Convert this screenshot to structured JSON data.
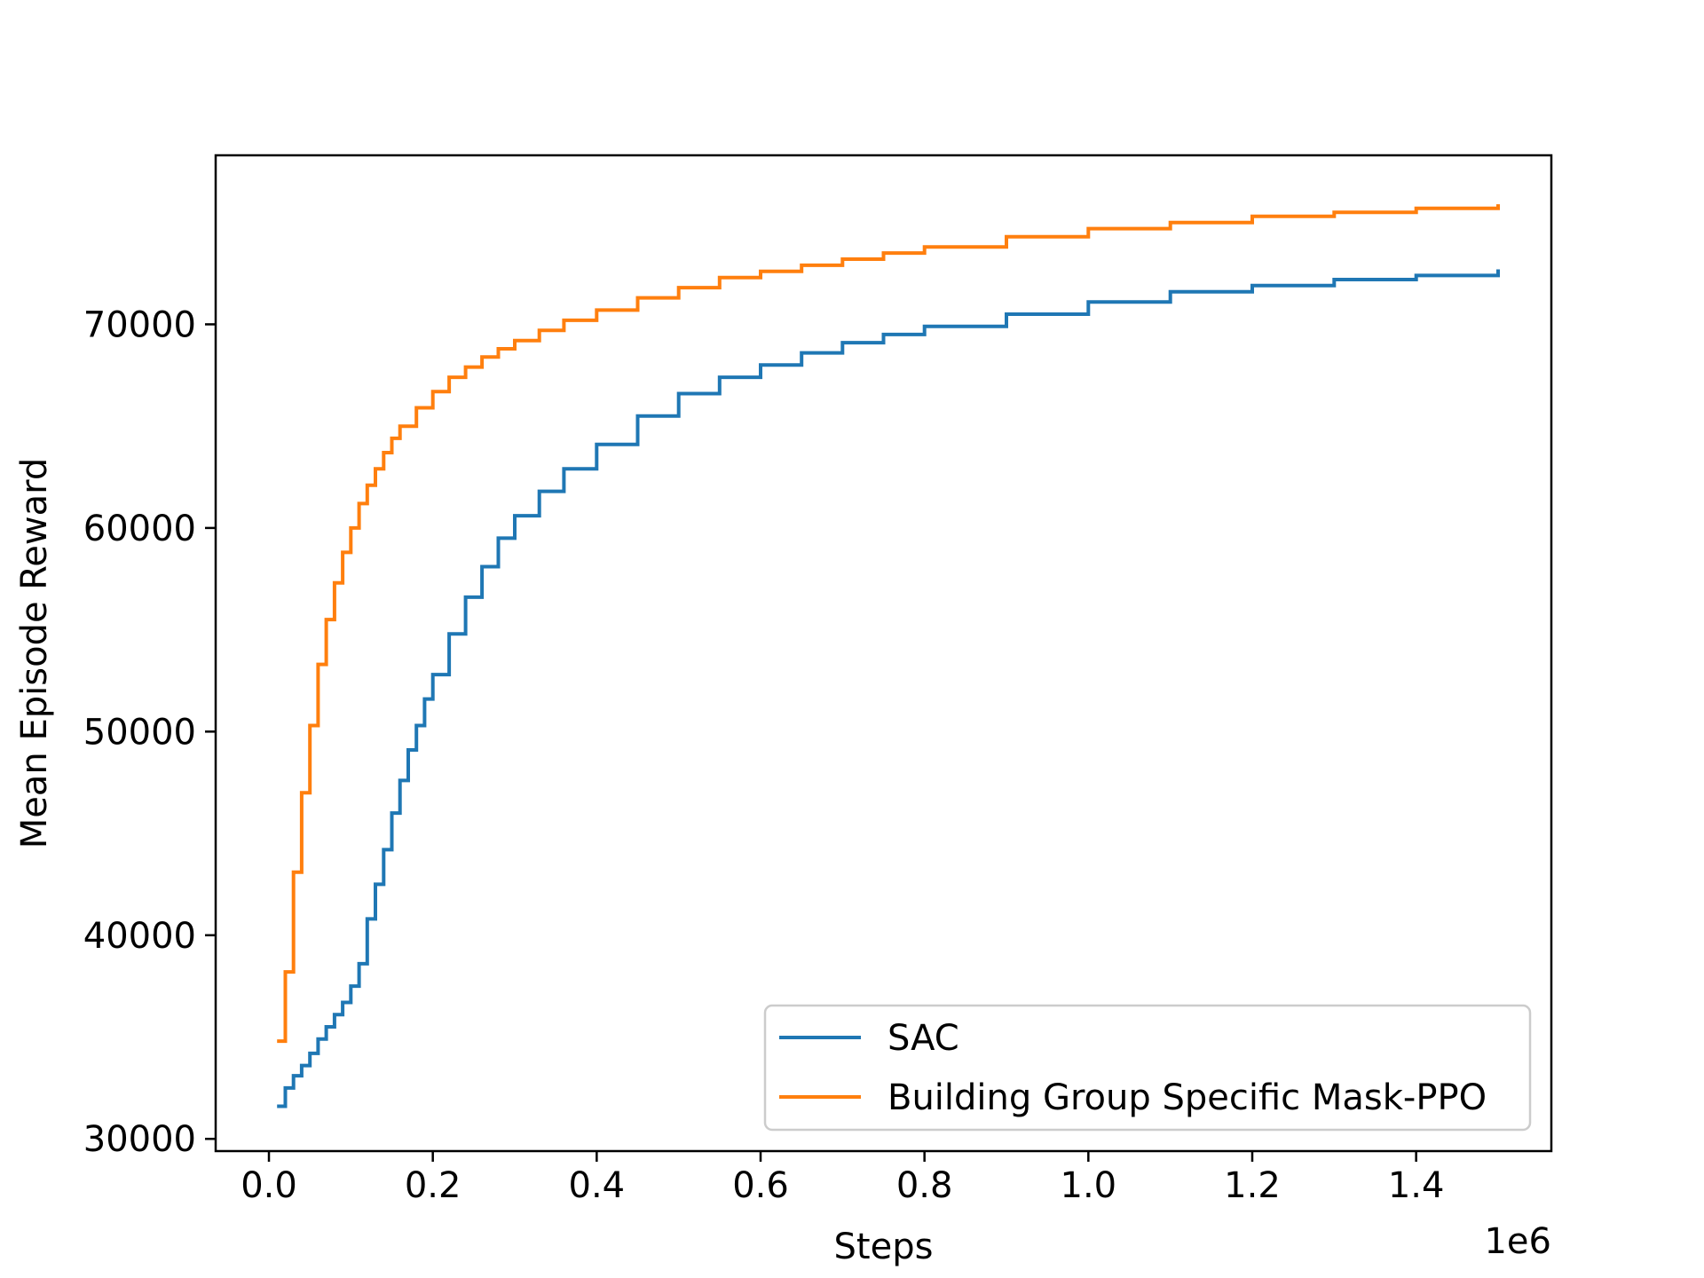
{
  "chart_data": {
    "type": "line",
    "title": "",
    "xlabel": "Steps",
    "ylabel": "Mean Episode Reward",
    "x_offset_label": "1e6",
    "xlim": [
      -0.065,
      1.565
    ],
    "ylim": [
      29400,
      78300
    ],
    "x_ticks": [
      0.0,
      0.2,
      0.4,
      0.6,
      0.8,
      1.0,
      1.2,
      1.4
    ],
    "x_tick_labels": [
      "0.0",
      "0.2",
      "0.4",
      "0.6",
      "0.8",
      "1.0",
      "1.2",
      "1.4"
    ],
    "y_ticks": [
      30000,
      40000,
      50000,
      60000,
      70000
    ],
    "y_tick_labels": [
      "30000",
      "40000",
      "50000",
      "60000",
      "70000"
    ],
    "grid": false,
    "legend_position": "bottom-right",
    "series": [
      {
        "name": "SAC",
        "color": "#1f77b4",
        "x": [
          0.01,
          0.02,
          0.03,
          0.04,
          0.05,
          0.06,
          0.07,
          0.08,
          0.09,
          0.1,
          0.11,
          0.12,
          0.13,
          0.14,
          0.15,
          0.16,
          0.17,
          0.18,
          0.19,
          0.2,
          0.22,
          0.24,
          0.26,
          0.28,
          0.3,
          0.33,
          0.36,
          0.4,
          0.45,
          0.5,
          0.55,
          0.6,
          0.65,
          0.7,
          0.75,
          0.8,
          0.9,
          1.0,
          1.1,
          1.2,
          1.3,
          1.4,
          1.5
        ],
        "y": [
          31600,
          32500,
          33100,
          33600,
          34200,
          34900,
          35500,
          36100,
          36700,
          37500,
          38600,
          40800,
          42500,
          44200,
          46000,
          47600,
          49100,
          50300,
          51600,
          52800,
          54800,
          56600,
          58100,
          59500,
          60600,
          61800,
          62900,
          64100,
          65500,
          66600,
          67400,
          68000,
          68600,
          69100,
          69500,
          69900,
          70500,
          71100,
          71600,
          71900,
          72200,
          72400,
          72700
        ]
      },
      {
        "name": "Building Group Specific Mask-PPO",
        "color": "#ff7f0e",
        "x": [
          0.01,
          0.02,
          0.03,
          0.04,
          0.05,
          0.06,
          0.07,
          0.08,
          0.09,
          0.1,
          0.11,
          0.12,
          0.13,
          0.14,
          0.15,
          0.16,
          0.18,
          0.2,
          0.22,
          0.24,
          0.26,
          0.28,
          0.3,
          0.33,
          0.36,
          0.4,
          0.45,
          0.5,
          0.55,
          0.6,
          0.65,
          0.7,
          0.75,
          0.8,
          0.9,
          1.0,
          1.1,
          1.2,
          1.3,
          1.4,
          1.5
        ],
        "y": [
          34800,
          38200,
          43100,
          47000,
          50300,
          53300,
          55500,
          57300,
          58800,
          60000,
          61200,
          62100,
          62900,
          63700,
          64400,
          65000,
          65900,
          66700,
          67400,
          67900,
          68400,
          68800,
          69200,
          69700,
          70200,
          70700,
          71300,
          71800,
          72300,
          72600,
          72900,
          73200,
          73500,
          73800,
          74300,
          74700,
          75000,
          75300,
          75500,
          75700,
          75900
        ]
      }
    ]
  }
}
